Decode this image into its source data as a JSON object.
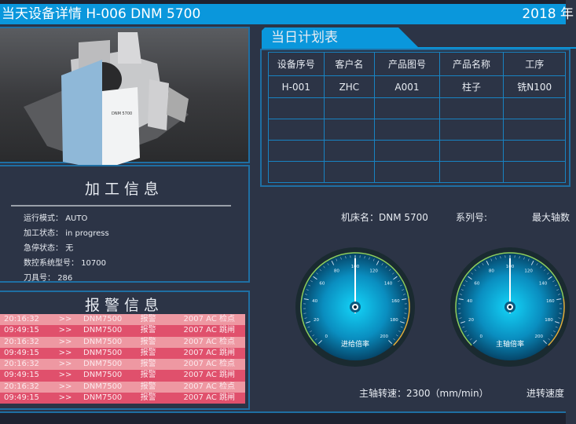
{
  "header": {
    "title": "当天设备详情  H-006   DNM 5700",
    "date": "2018 年"
  },
  "machine_image": {
    "label": "DNM 5700"
  },
  "info": {
    "title": "加工信息",
    "rows": [
      {
        "label": "运行模式：",
        "value": "AUTO"
      },
      {
        "label": "加工状态：",
        "value": "in progress"
      },
      {
        "label": "急停状态：",
        "value": "无"
      },
      {
        "label": "数控系统型号：",
        "value": "10700"
      },
      {
        "label": "刀具号：",
        "value": "286"
      }
    ]
  },
  "alarm": {
    "title": "报警信息",
    "rows": [
      {
        "time": "20:16:32",
        "sep": ">>",
        "machine": "DNM7500",
        "type": "报警",
        "msg": "2007  AC 检点"
      },
      {
        "time": "09:49:15",
        "sep": ">>",
        "machine": "DNM7500",
        "type": "报警",
        "msg": "2007  AC 跳闸"
      },
      {
        "time": "20:16:32",
        "sep": ">>",
        "machine": "DNM7500",
        "type": "报警",
        "msg": "2007  AC 检点"
      },
      {
        "time": "09:49:15",
        "sep": ">>",
        "machine": "DNM7500",
        "type": "报警",
        "msg": "2007  AC 跳闸"
      },
      {
        "time": "20:16:32",
        "sep": ">>",
        "machine": "DNM7500",
        "type": "报警",
        "msg": "2007  AC 检点"
      },
      {
        "time": "09:49:15",
        "sep": ">>",
        "machine": "DNM7500",
        "type": "报警",
        "msg": "2007  AC 跳闸"
      },
      {
        "time": "20:16:32",
        "sep": ">>",
        "machine": "DNM7500",
        "type": "报警",
        "msg": "2007  AC 检点"
      },
      {
        "time": "09:49:15",
        "sep": ">>",
        "machine": "DNM7500",
        "type": "报警",
        "msg": "2007  AC 跳闸"
      }
    ]
  },
  "plan": {
    "title": "当日计划表",
    "columns": [
      "设备序号",
      "客户名",
      "产品图号",
      "产品名称",
      "工序"
    ],
    "rows": [
      [
        "H-001",
        "ZHC",
        "A001",
        "柱子",
        "铣N100"
      ],
      [
        "",
        "",
        "",
        "",
        ""
      ],
      [
        "",
        "",
        "",
        "",
        ""
      ],
      [
        "",
        "",
        "",
        "",
        ""
      ],
      [
        "",
        "",
        "",
        "",
        ""
      ]
    ]
  },
  "details": {
    "machine_name": "机床名：DNM 5700",
    "series": "系列号:",
    "max_axis": "最大轴数",
    "spindle_speed": "主轴转速：2300（mm/min）",
    "feed_speed": "进转速度"
  },
  "gauges": [
    {
      "label": "进给倍率",
      "value": 100,
      "min": 0,
      "max": 200
    },
    {
      "label": "主轴倍率",
      "value": 100,
      "min": 0,
      "max": 200
    }
  ],
  "gauge_ticks": [
    "0",
    "20",
    "40",
    "60",
    "80",
    "100",
    "120",
    "140",
    "160",
    "180",
    "200"
  ]
}
